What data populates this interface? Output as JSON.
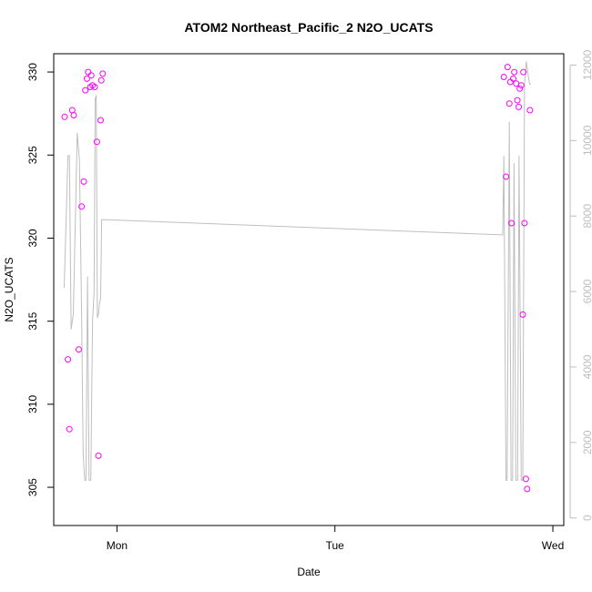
{
  "chart_data": {
    "type": "scatter",
    "title": "ATOM2 Northeast_Pacific_2 N2O_UCATS",
    "xlabel": "Date",
    "ylabel": "N2O_UCATS",
    "x_unit": "days since Sunday 00:00",
    "xlim": [
      0.71,
      3.05
    ],
    "ylim": [
      302.7,
      331.1
    ],
    "y2lim": [
      -200,
      12300
    ],
    "x_ticks": [
      {
        "value": 1,
        "label": "Mon"
      },
      {
        "value": 2,
        "label": "Tue"
      },
      {
        "value": 3,
        "label": "Wed"
      }
    ],
    "y_ticks": [
      305,
      310,
      315,
      320,
      325,
      330
    ],
    "y2_ticks": [
      0,
      2000,
      4000,
      6000,
      8000,
      10000,
      12000
    ],
    "grid": false,
    "legend": "none",
    "colors": {
      "points": "#ff00ff",
      "line": "#bebebe",
      "axis": "#000000",
      "secondary_axis": "#bebebe"
    },
    "series": [
      {
        "name": "",
        "kind": "points",
        "axis": "left",
        "x": [
          0.76,
          0.775,
          0.782,
          0.795,
          0.802,
          0.825,
          0.838,
          0.848,
          0.855,
          0.862,
          0.868,
          0.878,
          0.882,
          0.888,
          0.898,
          0.908,
          0.915,
          0.925,
          0.928,
          0.935,
          2.775,
          2.785,
          2.792,
          2.8,
          2.805,
          2.81,
          2.818,
          2.823,
          2.832,
          2.837,
          2.843,
          2.848,
          2.855,
          2.862,
          2.865,
          2.87,
          2.876,
          2.882,
          2.895
        ],
        "y": [
          327.3,
          312.7,
          308.5,
          327.7,
          327.4,
          313.3,
          321.9,
          323.4,
          328.9,
          329.6,
          330.0,
          329.1,
          329.8,
          329.2,
          329.1,
          325.8,
          306.9,
          327.1,
          329.5,
          329.9,
          329.7,
          323.7,
          330.3,
          328.1,
          329.4,
          320.9,
          329.6,
          330.0,
          329.3,
          328.3,
          327.9,
          329.0,
          329.2,
          315.4,
          330.0,
          320.9,
          305.5,
          304.9,
          327.7
        ]
      },
      {
        "name": "",
        "kind": "line",
        "axis": "right",
        "x": [
          0.758,
          0.775,
          0.782,
          0.79,
          0.8,
          0.818,
          0.828,
          0.838,
          0.845,
          0.852,
          0.858,
          0.865,
          0.872,
          0.88,
          0.888,
          0.895,
          0.9,
          0.905,
          0.91,
          0.915,
          0.92,
          0.925,
          0.93,
          0.938,
          0.945,
          0.955,
          2.77,
          2.775,
          2.785,
          2.79,
          2.8,
          2.808,
          2.815,
          2.822,
          2.83,
          2.838,
          2.845,
          2.855,
          2.862,
          2.87,
          2.878,
          2.885,
          2.893,
          2.9
        ],
        "y": [
          6100,
          9600,
          9600,
          5000,
          5400,
          10200,
          9500,
          5400,
          1700,
          1000,
          1000,
          6400,
          1000,
          1000,
          5200,
          6000,
          11100,
          11200,
          5300,
          5400,
          5700,
          5800,
          7900,
          7900,
          7900,
          7900,
          7500,
          9600,
          1000,
          1000,
          10500,
          1000,
          1000,
          9400,
          1000,
          1000,
          9600,
          1000,
          1000,
          11500,
          12100,
          11800,
          11500,
          11500
        ]
      }
    ]
  }
}
